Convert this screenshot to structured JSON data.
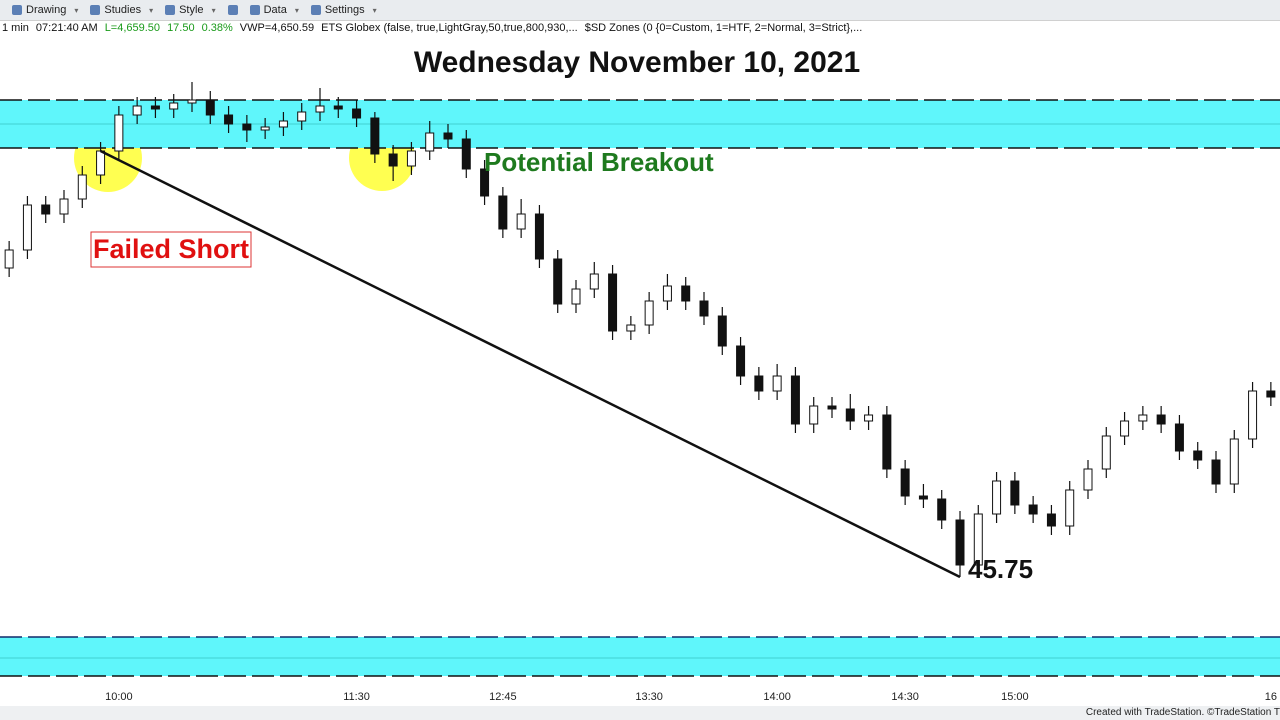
{
  "toolbar": [
    "Drawing",
    "Studies",
    "Style",
    "Data",
    "Settings"
  ],
  "status": [
    "1 min",
    "07:21:40 AM",
    "L=4,659.50",
    "17.50",
    "0.38%",
    "VWP=4,650.59",
    "ETS Globex (false,  true,LightGray,50,true,800,930,...",
    "$SD Zones (0  {0=Custom, 1=HTF, 2=Normal, 3=Strict},..."
  ],
  "footer": "Created with TradeStation. ©TradeStation T",
  "chart_data": {
    "type": "candlestick",
    "title": "Wednesday November 10, 2021",
    "annotations": {
      "failed": "Failed Short",
      "breakout": "Potential Breakout",
      "low_label": "45.75"
    },
    "ylim": [
      4636,
      4692
    ],
    "zones": [
      {
        "top": 4685.5,
        "mid": 4683.5,
        "bottom": 4681.5
      },
      {
        "top": 4640.75,
        "mid": 4639.0,
        "bottom": 4637.5
      }
    ],
    "categories": [
      null,
      null,
      null,
      null,
      null,
      null,
      "10:00",
      null,
      null,
      null,
      null,
      null,
      null,
      null,
      null,
      null,
      null,
      null,
      null,
      "11:30",
      null,
      null,
      null,
      null,
      null,
      null,
      null,
      "12:45",
      null,
      null,
      null,
      null,
      null,
      null,
      null,
      "13:30",
      null,
      null,
      null,
      null,
      null,
      null,
      "14:00",
      null,
      null,
      null,
      null,
      null,
      null,
      "14:30",
      null,
      null,
      null,
      null,
      null,
      "15:00",
      null,
      null,
      null,
      null,
      null,
      null,
      null,
      null,
      null,
      null,
      null,
      null,
      null,
      "16"
    ],
    "ohlc": [
      [
        4671.5,
        4673.75,
        4670.75,
        4673.0
      ],
      [
        4673,
        4677.5,
        4672.25,
        4676.75
      ],
      [
        4676.75,
        4677.5,
        4675.25,
        4676
      ],
      [
        4676,
        4678,
        4675.25,
        4677.25
      ],
      [
        4677.25,
        4680,
        4676.5,
        4679.25
      ],
      [
        4679.25,
        4682,
        4678.5,
        4681.25
      ],
      [
        4681.25,
        4685,
        4680.5,
        4684.25
      ],
      [
        4684.25,
        4685.75,
        4683.5,
        4685
      ],
      [
        4685,
        4685.75,
        4684,
        4684.75
      ],
      [
        4684.75,
        4686,
        4684,
        4685.25
      ],
      [
        4685.25,
        4687,
        4684.5,
        4685.5
      ],
      [
        4685.5,
        4686.25,
        4683.5,
        4684.25
      ],
      [
        4684.25,
        4685,
        4682.75,
        4683.5
      ],
      [
        4683.5,
        4684.25,
        4682,
        4683
      ],
      [
        4683,
        4684,
        4682.25,
        4683.25
      ],
      [
        4683.25,
        4684.5,
        4682.5,
        4683.75
      ],
      [
        4683.75,
        4685.25,
        4683,
        4684.5
      ],
      [
        4684.5,
        4686.5,
        4683.75,
        4685
      ],
      [
        4685,
        4685.75,
        4684,
        4684.75
      ],
      [
        4684.75,
        4685.5,
        4683.25,
        4684
      ],
      [
        4684,
        4684.5,
        4680.25,
        4681
      ],
      [
        4681,
        4681.75,
        4678.75,
        4680
      ],
      [
        4680,
        4682,
        4679.25,
        4681.25
      ],
      [
        4681.25,
        4683.75,
        4680.5,
        4682.75
      ],
      [
        4682.75,
        4683.5,
        4681.5,
        4682.25
      ],
      [
        4682.25,
        4683,
        4679,
        4679.75
      ],
      [
        4679.75,
        4680.5,
        4676.75,
        4677.5
      ],
      [
        4677.5,
        4678.25,
        4674,
        4674.75
      ],
      [
        4674.75,
        4677.25,
        4674,
        4676
      ],
      [
        4676,
        4676.75,
        4671.5,
        4672.25
      ],
      [
        4672.25,
        4673,
        4667.75,
        4668.5
      ],
      [
        4668.5,
        4670.5,
        4667.75,
        4669.75
      ],
      [
        4669.75,
        4672,
        4669,
        4671
      ],
      [
        4671,
        4671.75,
        4665.5,
        4666.25
      ],
      [
        4666.25,
        4667.5,
        4665.5,
        4666.75
      ],
      [
        4666.75,
        4669.5,
        4666,
        4668.75
      ],
      [
        4668.75,
        4671,
        4668,
        4670
      ],
      [
        4670,
        4670.75,
        4668,
        4668.75
      ],
      [
        4668.75,
        4669.5,
        4666.75,
        4667.5
      ],
      [
        4667.5,
        4668.25,
        4664.25,
        4665
      ],
      [
        4665,
        4665.75,
        4661.75,
        4662.5
      ],
      [
        4662.5,
        4663.25,
        4660.5,
        4661.25
      ],
      [
        4661.25,
        4663.5,
        4660.5,
        4662.5
      ],
      [
        4662.5,
        4663.25,
        4657.75,
        4658.5
      ],
      [
        4658.5,
        4660.75,
        4657.75,
        4660
      ],
      [
        4660,
        4660.75,
        4659,
        4659.75
      ],
      [
        4659.75,
        4661,
        4658,
        4658.75
      ],
      [
        4658.75,
        4660,
        4658,
        4659.25
      ],
      [
        4659.25,
        4660,
        4654,
        4654.75
      ],
      [
        4654.75,
        4655.5,
        4651.75,
        4652.5
      ],
      [
        4652.5,
        4653.5,
        4651.5,
        4652.25
      ],
      [
        4652.25,
        4653,
        4649.75,
        4650.5
      ],
      [
        4650.5,
        4651.25,
        4645.75,
        4646.75
      ],
      [
        4646.75,
        4651.75,
        4646,
        4651
      ],
      [
        4651,
        4654.5,
        4650.25,
        4653.75
      ],
      [
        4653.75,
        4654.5,
        4651,
        4651.75
      ],
      [
        4651.75,
        4652.5,
        4650.25,
        4651
      ],
      [
        4651,
        4651.75,
        4649.25,
        4650
      ],
      [
        4650,
        4653.75,
        4649.25,
        4653
      ],
      [
        4653,
        4655.5,
        4652.25,
        4654.75
      ],
      [
        4654.75,
        4658.25,
        4654,
        4657.5
      ],
      [
        4657.5,
        4659.5,
        4656.75,
        4658.75
      ],
      [
        4658.75,
        4660,
        4658,
        4659.25
      ],
      [
        4659.25,
        4660,
        4657.75,
        4658.5
      ],
      [
        4658.5,
        4659.25,
        4655.5,
        4656.25
      ],
      [
        4656.25,
        4657,
        4654.75,
        4655.5
      ],
      [
        4655.5,
        4656.25,
        4652.75,
        4653.5
      ],
      [
        4653.5,
        4658,
        4652.75,
        4657.25
      ],
      [
        4657.25,
        4662,
        4656.5,
        4661.25
      ],
      [
        4661.25,
        4662,
        4660,
        4660.75
      ]
    ]
  }
}
